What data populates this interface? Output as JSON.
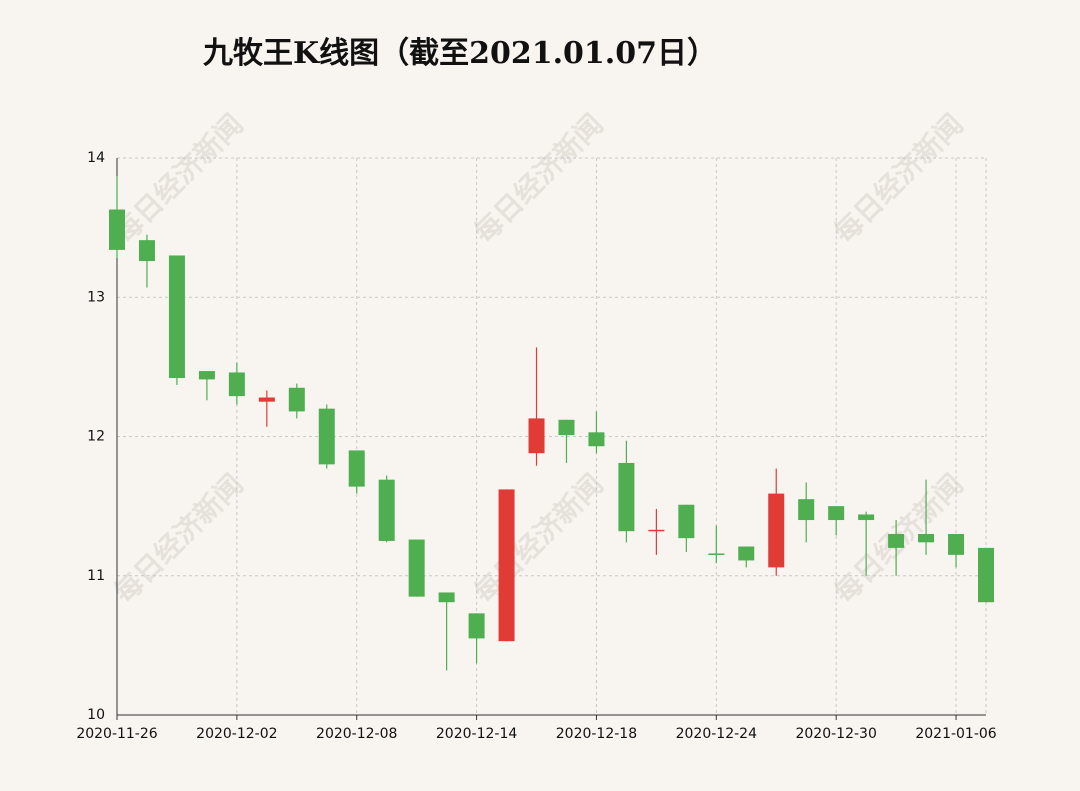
{
  "chart_data": {
    "type": "candlestick",
    "title": "九牧王K线图（截至2021.01.07日）",
    "watermark": "每日经济新闻",
    "categories": [
      "2020-11-26",
      null,
      null,
      null,
      "2020-12-02",
      null,
      null,
      null,
      "2020-12-08",
      null,
      null,
      null,
      "2020-12-14",
      null,
      null,
      null,
      "2020-12-18",
      null,
      null,
      null,
      "2020-12-24",
      null,
      null,
      null,
      "2020-12-30",
      null,
      null,
      null,
      "2021-01-06",
      null
    ],
    "open": [
      13.63,
      13.41,
      13.3,
      12.47,
      12.46,
      12.25,
      12.35,
      12.2,
      11.9,
      11.69,
      11.26,
      10.88,
      10.73,
      10.53,
      11.88,
      12.12,
      12.03,
      11.81,
      11.32,
      11.51,
      11.16,
      11.21,
      11.06,
      11.55,
      11.5,
      11.44,
      11.3,
      11.3,
      11.3,
      11.2
    ],
    "high": [
      13.87,
      13.45,
      13.3,
      12.47,
      12.53,
      12.33,
      12.38,
      12.23,
      11.9,
      11.72,
      11.26,
      10.88,
      10.73,
      11.62,
      12.64,
      12.12,
      12.18,
      11.97,
      11.48,
      11.51,
      11.36,
      11.21,
      11.77,
      11.67,
      11.5,
      11.46,
      11.4,
      11.69,
      11.3,
      11.2
    ],
    "low": [
      13.28,
      13.07,
      12.37,
      12.26,
      12.23,
      12.07,
      12.13,
      11.77,
      11.59,
      11.24,
      10.85,
      10.32,
      10.37,
      10.53,
      11.79,
      11.81,
      11.88,
      11.24,
      11.15,
      11.17,
      11.09,
      11.06,
      11.0,
      11.24,
      11.29,
      11.0,
      11.0,
      11.15,
      11.06,
      10.81
    ],
    "close": [
      13.34,
      13.26,
      12.42,
      12.41,
      12.29,
      12.28,
      12.18,
      11.8,
      11.64,
      11.25,
      10.85,
      10.81,
      10.55,
      11.62,
      12.13,
      12.01,
      11.93,
      11.32,
      11.33,
      11.27,
      11.15,
      11.11,
      11.59,
      11.4,
      11.4,
      11.4,
      11.2,
      11.24,
      11.15,
      10.81
    ],
    "up_color": "#e03c35",
    "down_color": "#4eae50",
    "ylim": [
      10,
      14
    ],
    "yticks": [
      10,
      11,
      12,
      13,
      14
    ],
    "grid": true
  }
}
